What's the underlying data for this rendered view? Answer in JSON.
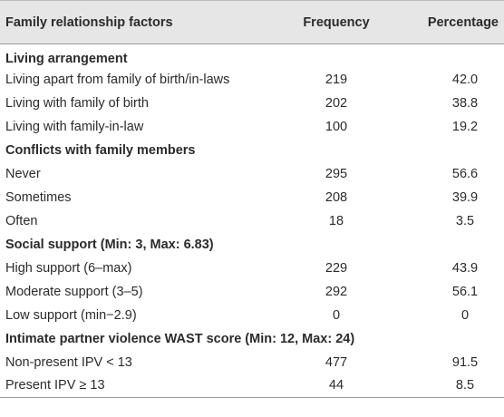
{
  "table": {
    "columns": [
      "Family relationship factors",
      "Frequency",
      "Percentage"
    ],
    "sections": [
      {
        "title": "Living arrangement",
        "rows": [
          [
            "Living apart from family of birth/in-laws",
            "219",
            "42.0"
          ],
          [
            "Living with family of birth",
            "202",
            "38.8"
          ],
          [
            "Living with family-in-law",
            "100",
            "19.2"
          ]
        ]
      },
      {
        "title": "Conflicts with family members",
        "rows": [
          [
            "Never",
            "295",
            "56.6"
          ],
          [
            "Sometimes",
            "208",
            "39.9"
          ],
          [
            "Often",
            "18",
            "3.5"
          ]
        ]
      },
      {
        "title": "Social support (Min: 3, Max: 6.83)",
        "rows": [
          [
            "High support (6–max)",
            "229",
            "43.9"
          ],
          [
            "Moderate support (3–5)",
            "292",
            "56.1"
          ],
          [
            "Low support (min−2.9)",
            "0",
            "0"
          ]
        ]
      },
      {
        "title": "Intimate partner violence WAST score (Min: 12, Max: 24)",
        "rows": [
          [
            "Non-present IPV < 13",
            "477",
            "91.5"
          ],
          [
            "Present IPV ≥ 13",
            "44",
            "8.5"
          ]
        ]
      }
    ]
  }
}
